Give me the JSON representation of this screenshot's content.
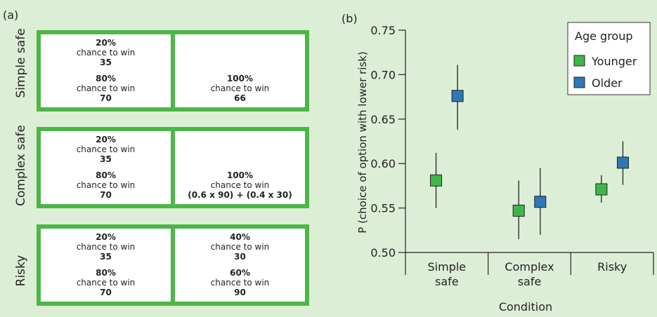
{
  "panel_a": {
    "label": "(a)",
    "rows": [
      {
        "name": "Simple safe",
        "left": [
          {
            "pct": "20%",
            "text": "chance to win",
            "amount": "35"
          },
          {
            "pct": "80%",
            "text": "chance to win",
            "amount": "70"
          }
        ],
        "right": [
          {
            "pct": "100%",
            "text": "chance to win",
            "amount": "66"
          }
        ]
      },
      {
        "name": "Complex safe",
        "left": [
          {
            "pct": "20%",
            "text": "chance to win",
            "amount": "35"
          },
          {
            "pct": "80%",
            "text": "chance to win",
            "amount": "70"
          }
        ],
        "right": [
          {
            "pct": "100%",
            "text": "chance to win",
            "amount": "(0.6 x 90) + (0.4 x 30)"
          }
        ]
      },
      {
        "name": "Risky",
        "left": [
          {
            "pct": "20%",
            "text": "chance to win",
            "amount": "35"
          },
          {
            "pct": "80%",
            "text": "chance to win",
            "amount": "70"
          }
        ],
        "right": [
          {
            "pct": "40%",
            "text": "chance to win",
            "amount": "30"
          },
          {
            "pct": "60%",
            "text": "chance to win",
            "amount": "90"
          }
        ]
      }
    ]
  },
  "panel_b_label": "(b)",
  "colors": {
    "background": "#ddeed6",
    "card_border": "#4cb747",
    "younger": "#3fb64a",
    "older": "#2f78b7"
  },
  "chart_data": {
    "type": "scatter",
    "title": "",
    "xlabel": "Condition",
    "ylabel": "P (choice of option with lower risk)",
    "ylim": [
      0.5,
      0.75
    ],
    "yticks": [
      "0.50",
      "0.55",
      "0.60",
      "0.65",
      "0.70",
      "0.75"
    ],
    "categories": [
      [
        "Simple",
        "safe"
      ],
      [
        "Complex",
        "safe"
      ],
      [
        "Risky"
      ]
    ],
    "legend": {
      "title": "Age group",
      "position": "top-right"
    },
    "series": [
      {
        "name": "Younger",
        "values": [
          0.581,
          0.547,
          0.571
        ],
        "err_low": [
          0.55,
          0.515,
          0.556
        ],
        "err_high": [
          0.612,
          0.581,
          0.587
        ]
      },
      {
        "name": "Older",
        "values": [
          0.676,
          0.557,
          0.601
        ],
        "err_low": [
          0.638,
          0.52,
          0.576
        ],
        "err_high": [
          0.711,
          0.595,
          0.625
        ]
      }
    ]
  }
}
